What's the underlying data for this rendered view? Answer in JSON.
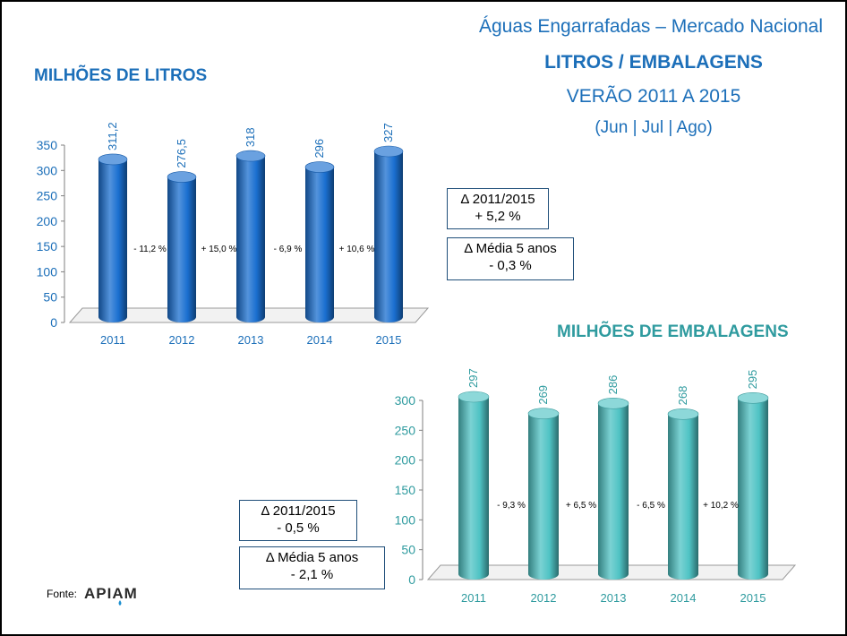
{
  "header": {
    "title": "Águas Engarrafadas – Mercado Nacional",
    "subtitle": "LITROS / EMBALAGENS",
    "period": "VERÃO 2011 A 2015",
    "months": "(Jun | Jul | Ago)"
  },
  "chart_data": [
    {
      "type": "bar",
      "title": "MILHÕES DE LITROS",
      "categories": [
        "2011",
        "2012",
        "2013",
        "2014",
        "2015"
      ],
      "values": [
        311.2,
        276.5,
        318,
        296,
        327
      ],
      "value_labels": [
        "311,2",
        "276,5",
        "318",
        "296",
        "327"
      ],
      "change_labels": [
        "- 11,2 %",
        "+ 15,0 %",
        "- 6,9 %",
        "+ 10,6 %"
      ],
      "ylim": [
        0,
        350
      ],
      "yticks": [
        0,
        50,
        100,
        150,
        200,
        250,
        300,
        350
      ],
      "color": "#1a6fd0",
      "text_color": "#1c6fb9",
      "grid": false
    },
    {
      "type": "bar",
      "title": "MILHÕES DE EMBALAGENS",
      "categories": [
        "2011",
        "2012",
        "2013",
        "2014",
        "2015"
      ],
      "values": [
        297,
        269,
        286,
        268,
        295
      ],
      "value_labels": [
        "297",
        "269",
        "286",
        "268",
        "295"
      ],
      "change_labels": [
        "- 9,3 %",
        "+ 6,5 %",
        "- 6,5 %",
        "+ 10,2 %"
      ],
      "ylim": [
        0,
        300
      ],
      "yticks": [
        0,
        50,
        100,
        150,
        200,
        250,
        300
      ],
      "color": "#4fc3c4",
      "text_color": "#2f9b9f",
      "grid": false
    }
  ],
  "boxes": {
    "litros_delta_line1": "Δ 2011/2015",
    "litros_delta_line2": "+ 5,2 %",
    "litros_avg_line1": "Δ Média 5 anos",
    "litros_avg_line2": "- 0,3 %",
    "emb_delta_line1": "Δ 2011/2015",
    "emb_delta_line2": "- 0,5 %",
    "emb_avg_line1": "Δ Média 5 anos",
    "emb_avg_line2": "- 2,1 %"
  },
  "footer": {
    "source_label": "Fonte:",
    "logo_text": "APIAM"
  }
}
